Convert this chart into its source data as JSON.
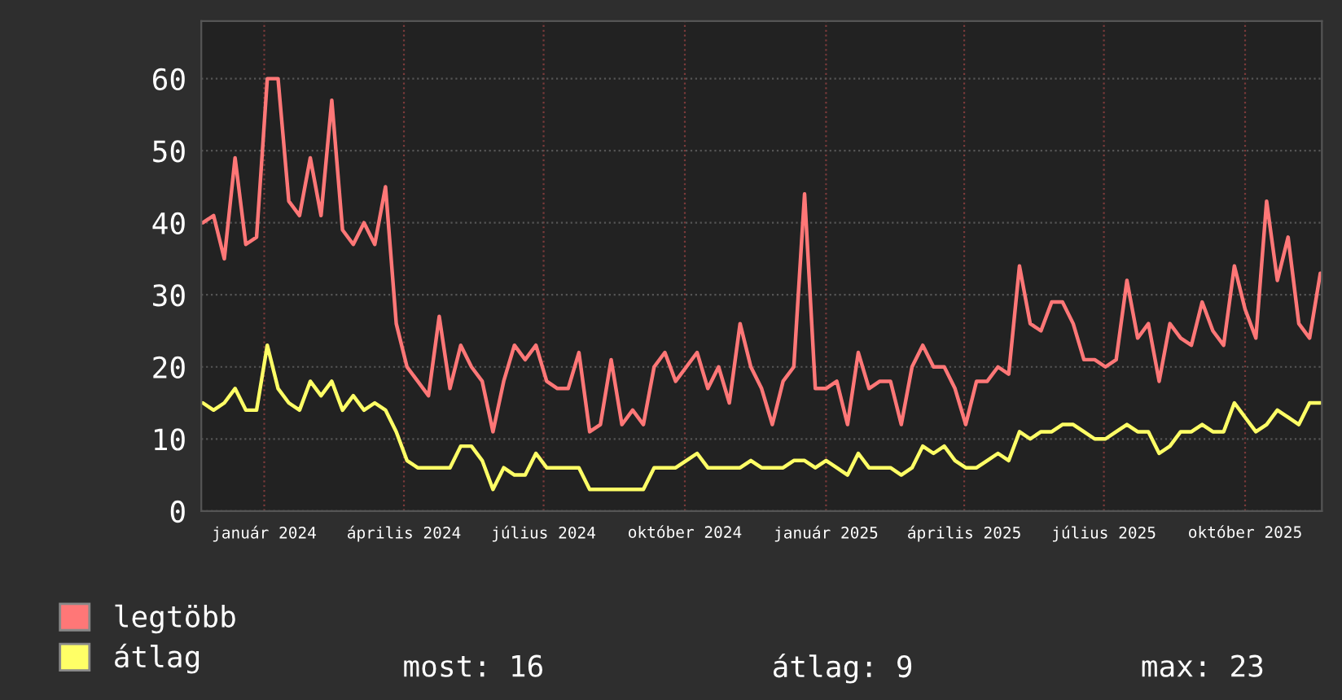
{
  "chart_data": {
    "type": "line",
    "x": [
      "2023-11-22",
      "2023-11-29",
      "2023-12-06",
      "2023-12-13",
      "2023-12-20",
      "2023-12-27",
      "2024-01-03",
      "2024-01-10",
      "2024-01-17",
      "2024-01-24",
      "2024-01-31",
      "2024-02-07",
      "2024-02-14",
      "2024-02-21",
      "2024-02-28",
      "2024-03-06",
      "2024-03-13",
      "2024-03-20",
      "2024-03-27",
      "2024-04-03",
      "2024-04-10",
      "2024-04-17",
      "2024-04-24",
      "2024-05-01",
      "2024-05-08",
      "2024-05-15",
      "2024-05-22",
      "2024-05-29",
      "2024-06-05",
      "2024-06-12",
      "2024-06-19",
      "2024-06-26",
      "2024-07-03",
      "2024-07-10",
      "2024-07-17",
      "2024-07-24",
      "2024-07-31",
      "2024-08-07",
      "2024-08-14",
      "2024-08-21",
      "2024-08-28",
      "2024-09-04",
      "2024-09-11",
      "2024-09-18",
      "2024-09-25",
      "2024-10-02",
      "2024-10-09",
      "2024-10-16",
      "2024-10-23",
      "2024-10-30",
      "2024-11-06",
      "2024-11-13",
      "2024-11-20",
      "2024-11-27",
      "2024-12-04",
      "2024-12-11",
      "2024-12-18",
      "2024-12-25",
      "2025-01-01",
      "2025-01-08",
      "2025-01-15",
      "2025-01-22",
      "2025-01-29",
      "2025-02-05",
      "2025-02-12",
      "2025-02-19",
      "2025-02-26",
      "2025-03-05",
      "2025-03-12",
      "2025-03-19",
      "2025-03-26",
      "2025-04-02",
      "2025-04-09",
      "2025-04-16",
      "2025-04-23",
      "2025-04-30",
      "2025-05-07",
      "2025-05-14",
      "2025-05-21",
      "2025-05-28",
      "2025-06-04",
      "2025-06-11",
      "2025-06-18",
      "2025-06-25",
      "2025-07-02",
      "2025-07-09",
      "2025-07-16",
      "2025-07-23",
      "2025-07-30",
      "2025-08-06",
      "2025-08-13",
      "2025-08-20",
      "2025-08-27",
      "2025-09-03",
      "2025-09-10",
      "2025-09-17",
      "2025-09-24",
      "2025-10-01",
      "2025-10-08",
      "2025-10-15",
      "2025-10-22",
      "2025-10-29",
      "2025-11-05",
      "2025-11-12",
      "2025-11-19"
    ],
    "series": [
      {
        "name": "legtöbb",
        "color": "#ff7777",
        "values": [
          40,
          41,
          35,
          49,
          37,
          38,
          60,
          60,
          43,
          41,
          49,
          41,
          57,
          39,
          37,
          40,
          37,
          45,
          26,
          20,
          18,
          16,
          27,
          17,
          23,
          20,
          18,
          11,
          18,
          23,
          21,
          23,
          18,
          17,
          17,
          22,
          11,
          12,
          21,
          12,
          14,
          12,
          20,
          22,
          18,
          20,
          22,
          17,
          20,
          15,
          26,
          20,
          17,
          12,
          18,
          20,
          44,
          17,
          17,
          18,
          12,
          22,
          17,
          18,
          18,
          12,
          20,
          23,
          20,
          20,
          17,
          12,
          18,
          18,
          20,
          19,
          34,
          26,
          25,
          29,
          29,
          26,
          21,
          21,
          20,
          21,
          32,
          24,
          26,
          18,
          26,
          24,
          23,
          29,
          25,
          23,
          34,
          28,
          24,
          43,
          32,
          38,
          26,
          24,
          33
        ]
      },
      {
        "name": "átlag",
        "color": "#ffff66",
        "values": [
          15,
          14,
          15,
          17,
          14,
          14,
          23,
          17,
          15,
          14,
          18,
          16,
          18,
          14,
          16,
          14,
          15,
          14,
          11,
          7,
          6,
          6,
          6,
          6,
          9,
          9,
          7,
          3,
          6,
          5,
          5,
          8,
          6,
          6,
          6,
          6,
          3,
          3,
          3,
          3,
          3,
          3,
          6,
          6,
          6,
          7,
          8,
          6,
          6,
          6,
          6,
          7,
          6,
          6,
          6,
          7,
          7,
          6,
          7,
          6,
          5,
          8,
          6,
          6,
          6,
          5,
          6,
          9,
          8,
          9,
          7,
          6,
          6,
          7,
          8,
          7,
          11,
          10,
          11,
          11,
          12,
          12,
          11,
          10,
          10,
          11,
          12,
          11,
          11,
          8,
          9,
          11,
          11,
          12,
          11,
          11,
          15,
          13,
          11,
          12,
          14,
          13,
          12,
          15,
          15
        ]
      }
    ],
    "xlim": [
      "2023-11-21",
      "2025-11-20"
    ],
    "xticks": [
      {
        "value": "2024-01-01",
        "label": "január 2024"
      },
      {
        "value": "2024-04-01",
        "label": "április 2024"
      },
      {
        "value": "2024-07-01",
        "label": "július 2024"
      },
      {
        "value": "2024-10-01",
        "label": "október 2024"
      },
      {
        "value": "2025-01-01",
        "label": "január 2025"
      },
      {
        "value": "2025-04-01",
        "label": "április 2025"
      },
      {
        "value": "2025-07-01",
        "label": "július 2025"
      },
      {
        "value": "2025-10-01",
        "label": "október 2025"
      }
    ],
    "ylim": [
      0,
      68
    ],
    "yticks": [
      0,
      10,
      20,
      30,
      40,
      50,
      60
    ],
    "grid": true,
    "legend": "bottom left",
    "annotations": [
      "most: 16",
      "átlag: 9",
      "max: 23"
    ]
  }
}
